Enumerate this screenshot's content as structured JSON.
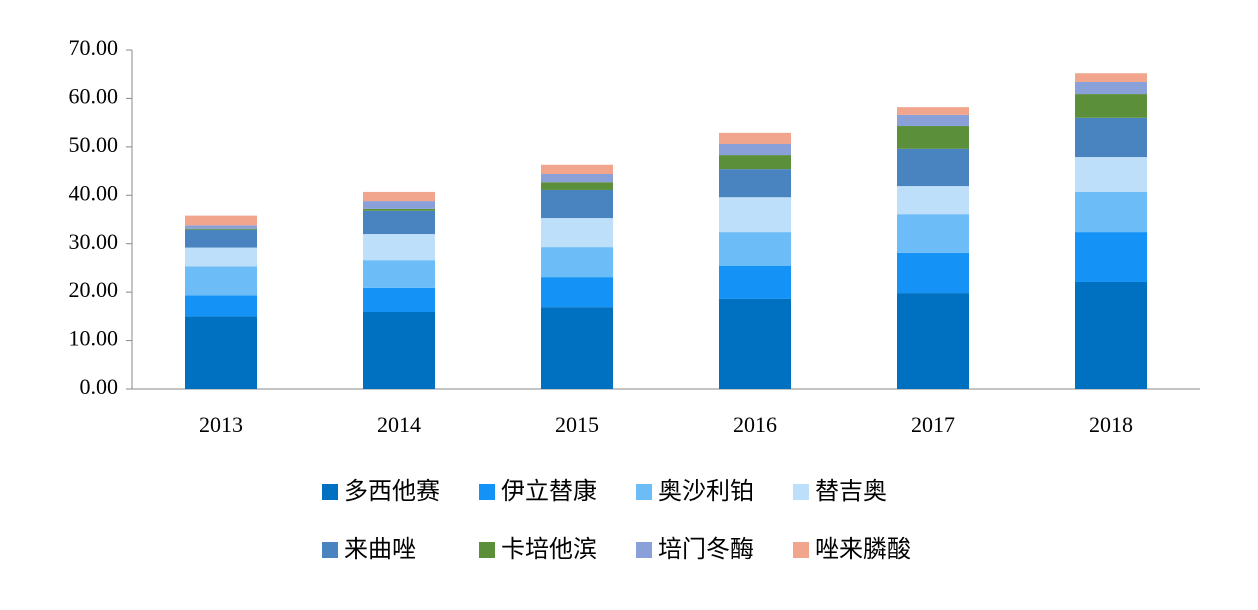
{
  "chart_data": {
    "type": "stacked_bar",
    "categories": [
      "2013",
      "2014",
      "2015",
      "2016",
      "2017",
      "2018"
    ],
    "series": [
      {
        "name": "多西他赛",
        "color": "#0070c0",
        "values": [
          15.0,
          15.9,
          16.9,
          18.6,
          19.8,
          22.1
        ]
      },
      {
        "name": "伊立替康",
        "color": "#1592f5",
        "values": [
          4.3,
          5.0,
          6.2,
          6.8,
          8.3,
          10.3
        ]
      },
      {
        "name": "奥沙利铂",
        "color": "#6cbdf7",
        "values": [
          6.0,
          5.7,
          6.2,
          7.0,
          8.0,
          8.3
        ]
      },
      {
        "name": "替吉奥",
        "color": "#bddff9",
        "values": [
          3.9,
          5.4,
          6.0,
          7.2,
          5.8,
          7.2
        ]
      },
      {
        "name": "来曲唑",
        "color": "#4a84c0",
        "values": [
          3.7,
          4.8,
          5.8,
          5.8,
          7.7,
          8.1
        ]
      },
      {
        "name": "卡培他滨",
        "color": "#5b8f3a",
        "values": [
          0.2,
          0.4,
          1.6,
          2.9,
          4.7,
          4.9
        ]
      },
      {
        "name": "培门冬酶",
        "color": "#8aa0d8",
        "values": [
          0.7,
          1.6,
          1.7,
          2.3,
          2.3,
          2.5
        ]
      },
      {
        "name": "唑来膦酸",
        "color": "#f0a58c",
        "values": [
          2.0,
          1.9,
          1.9,
          2.3,
          1.6,
          1.8
        ]
      }
    ],
    "ylim": [
      0,
      70
    ],
    "yticks": [
      {
        "value": 0,
        "label": "0.00"
      },
      {
        "value": 10,
        "label": "10.00"
      },
      {
        "value": 20,
        "label": "20.00"
      },
      {
        "value": 30,
        "label": "30.00"
      },
      {
        "value": 40,
        "label": "40.00"
      },
      {
        "value": 50,
        "label": "50.00"
      },
      {
        "value": 60,
        "label": "60.00"
      },
      {
        "value": 70,
        "label": "70.00"
      }
    ],
    "grid": false
  }
}
